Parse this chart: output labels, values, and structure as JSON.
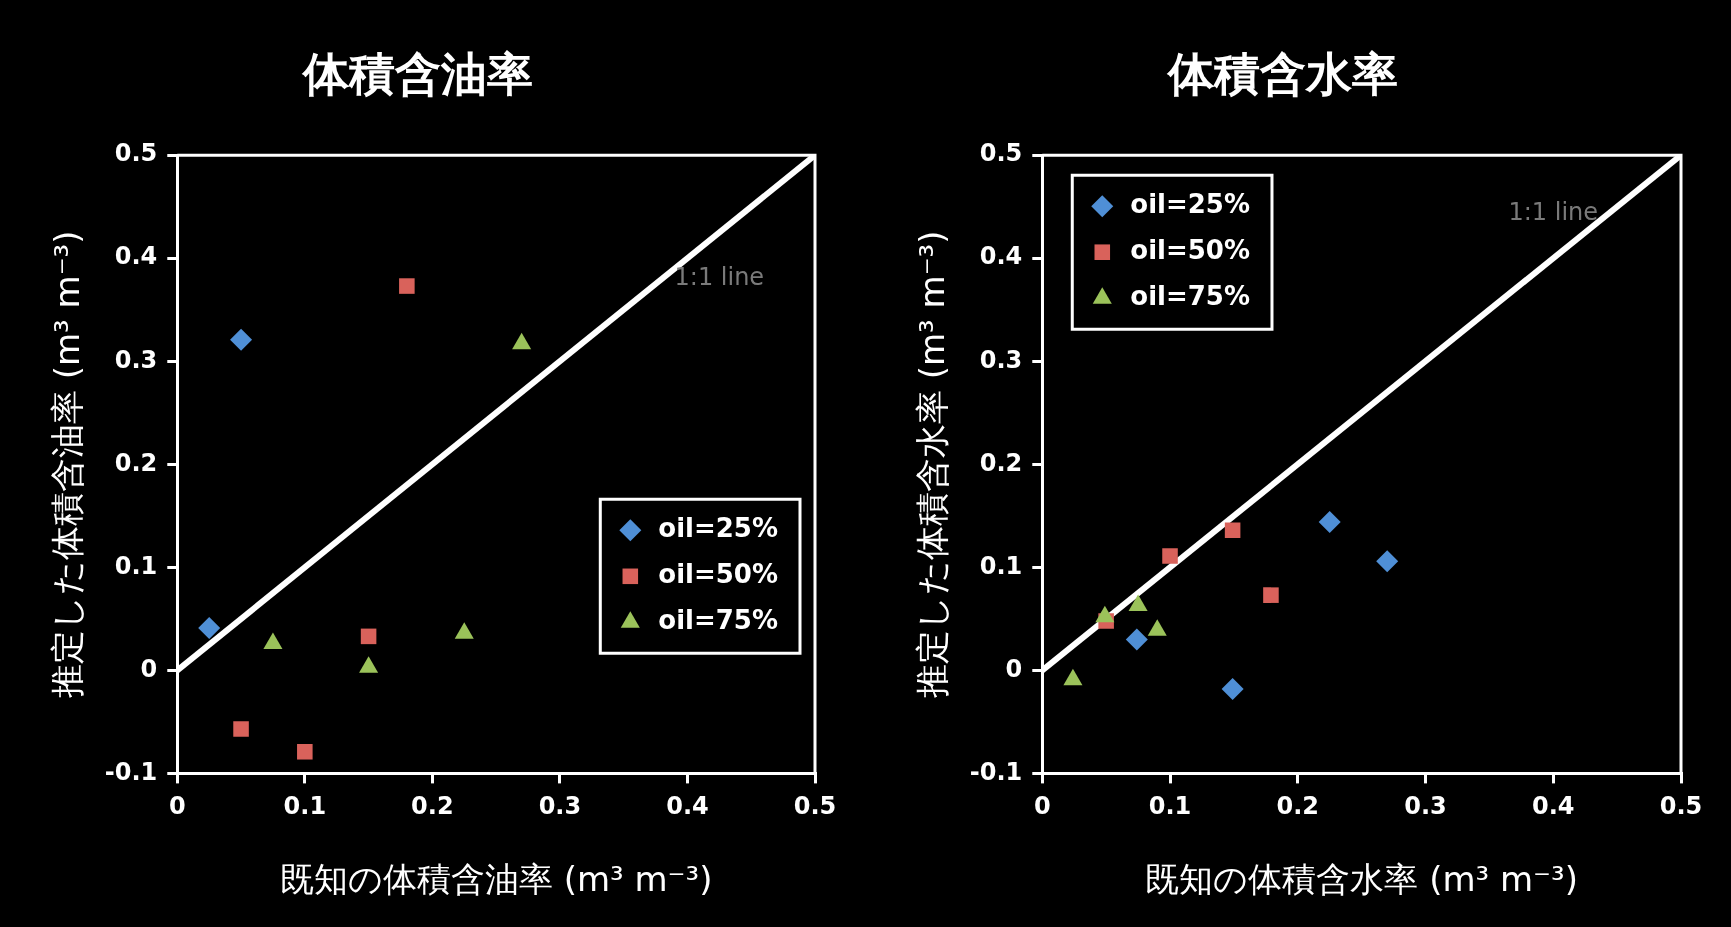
{
  "chart_data": [
    {
      "type": "scatter",
      "title": "体積含油率",
      "xlabel": "既知の体積含油率 (m³ m⁻³)",
      "ylabel": "推定した体積含油率 (m³ m⁻³)",
      "xlim": [
        0,
        0.5
      ],
      "ylim": [
        -0.1,
        0.5
      ],
      "xticks": [
        0,
        0.1,
        0.2,
        0.3,
        0.4,
        0.5
      ],
      "yticks": [
        -0.1,
        0,
        0.1,
        0.2,
        0.3,
        0.4,
        0.5
      ],
      "grid": false,
      "legend": "right",
      "annotations": [
        "1:1 line"
      ],
      "series": [
        {
          "name": "oil=25%",
          "color": "#4f8fd6",
          "marker": "diamond",
          "x": [
            0.025,
            0.05
          ],
          "values": [
            0.041,
            0.321
          ]
        },
        {
          "name": "oil=50%",
          "color": "#d9625b",
          "marker": "square",
          "x": [
            0.18,
            0.05,
            0.1,
            0.15
          ],
          "values": [
            0.373,
            -0.057,
            -0.079,
            0.033
          ]
        },
        {
          "name": "oil=75%",
          "color": "#9bc25a",
          "marker": "triangle",
          "x": [
            0.27,
            0.075,
            0.15,
            0.225
          ],
          "values": [
            0.317,
            0.026,
            0.003,
            0.036
          ]
        },
        {
          "type": "line",
          "color": "#ffffff",
          "marker": "none",
          "x": [
            0,
            0.5
          ],
          "values": [
            0,
            0.5
          ]
        }
      ]
    },
    {
      "type": "scatter",
      "title": "体積含水率",
      "xlabel": "既知の体積含水率 (m³ m⁻³)",
      "ylabel": "推定した体積含水率 (m³ m⁻³)",
      "xlim": [
        0,
        0.5
      ],
      "ylim": [
        -0.1,
        0.5
      ],
      "xticks": [
        0,
        0.1,
        0.2,
        0.3,
        0.4,
        0.5
      ],
      "yticks": [
        -0.1,
        0,
        0.1,
        0.2,
        0.3,
        0.4,
        0.5
      ],
      "grid": false,
      "legend": "top left",
      "annotations": [
        "1:1 line"
      ],
      "series": [
        {
          "name": "oil=25%",
          "color": "#4f8fd6",
          "marker": "diamond",
          "x": [
            0.074,
            0.149,
            0.225,
            0.27
          ],
          "values": [
            0.03,
            -0.018,
            0.144,
            0.106
          ]
        },
        {
          "name": "oil=50%",
          "color": "#d9625b",
          "marker": "square",
          "x": [
            0.05,
            0.1,
            0.149,
            0.179
          ],
          "values": [
            0.048,
            0.111,
            0.136,
            0.073
          ]
        },
        {
          "name": "oil=75%",
          "color": "#9bc25a",
          "marker": "triangle",
          "x": [
            0.024,
            0.049,
            0.075,
            0.09
          ],
          "values": [
            -0.009,
            0.052,
            0.063,
            0.039
          ]
        },
        {
          "type": "line",
          "color": "#ffffff",
          "marker": "none",
          "x": [
            0,
            0.5
          ],
          "values": [
            0,
            0.5
          ]
        }
      ]
    }
  ]
}
